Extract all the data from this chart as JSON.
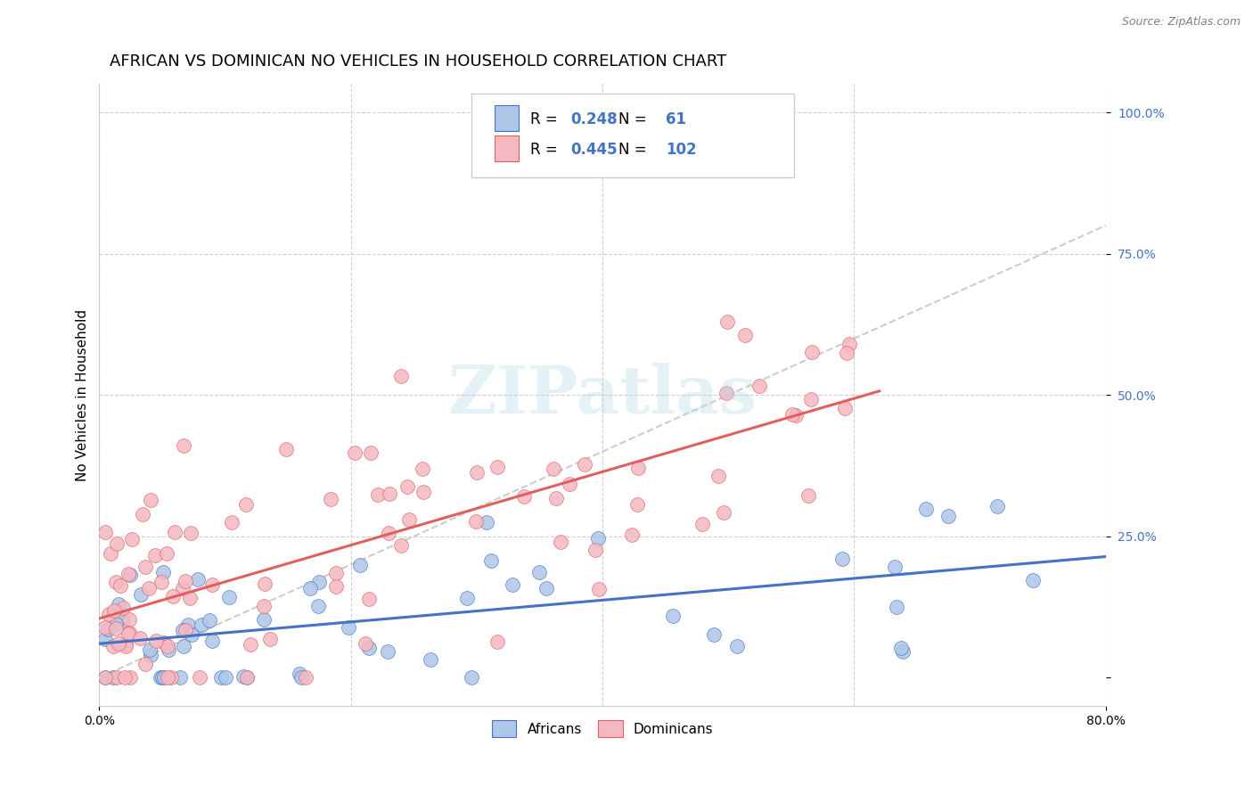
{
  "title": "AFRICAN VS DOMINICAN NO VEHICLES IN HOUSEHOLD CORRELATION CHART",
  "source": "Source: ZipAtlas.com",
  "ylabel": "No Vehicles in Household",
  "xlim": [
    0.0,
    0.8
  ],
  "ylim": [
    -0.05,
    1.05
  ],
  "ytick_vals": [
    0.0,
    0.25,
    0.5,
    0.75,
    1.0
  ],
  "ytick_labels": [
    "",
    "25.0%",
    "50.0%",
    "75.0%",
    "100.0%"
  ],
  "xtick_vals": [
    0.0,
    0.8
  ],
  "xtick_labels": [
    "0.0%",
    "80.0%"
  ],
  "african_color": "#aec6e8",
  "dominican_color": "#f4b8c1",
  "african_line_color": "#4472c4",
  "dominican_line_color": "#e06060",
  "diagonal_line_color": "#c0c0c0",
  "african_R": 0.248,
  "african_N": 61,
  "dominican_R": 0.445,
  "dominican_N": 102,
  "watermark": "ZIPatlas",
  "background_color": "#ffffff",
  "grid_color": "#d0d0d0",
  "title_fontsize": 13,
  "axis_label_fontsize": 11,
  "tick_fontsize": 10,
  "legend_fontsize": 12
}
